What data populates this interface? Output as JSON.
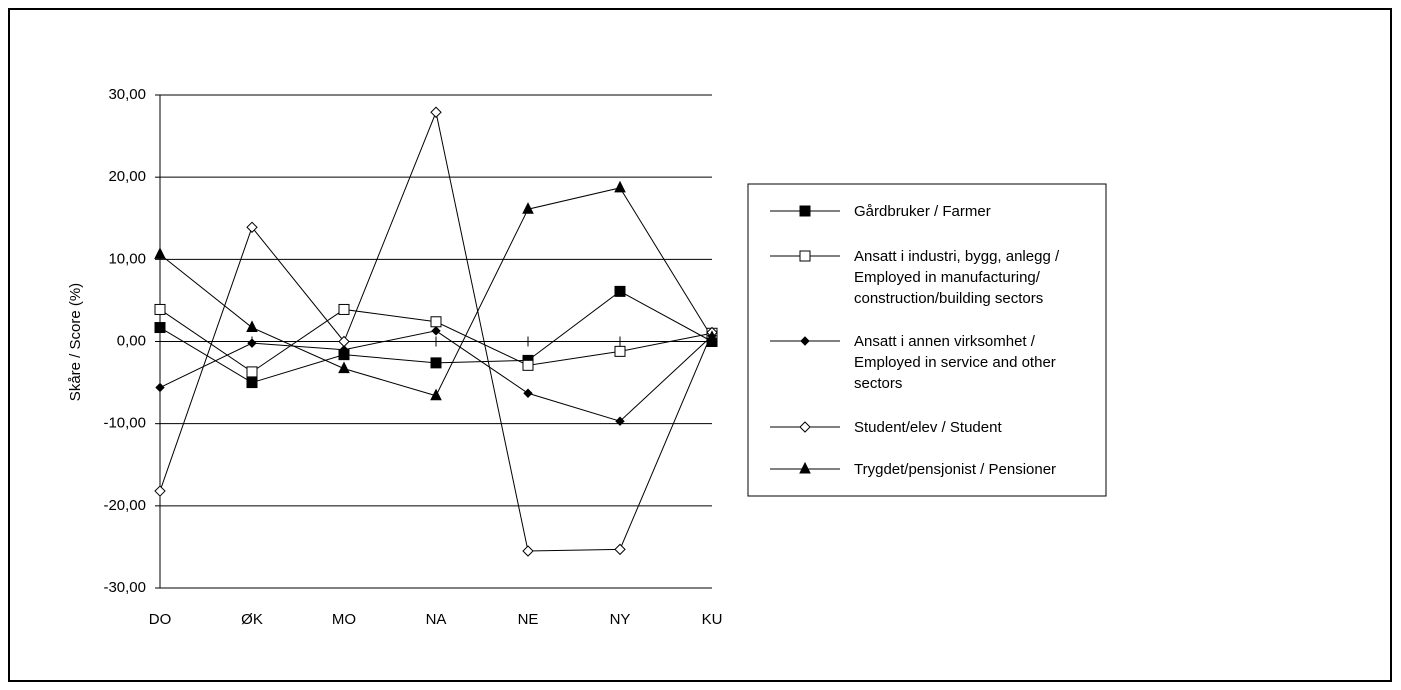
{
  "chart_data": {
    "type": "line",
    "y_label": "Skåre / Score (%)",
    "categories": [
      "DO",
      "ØK",
      "MO",
      "NA",
      "NE",
      "NY",
      "KU"
    ],
    "ylim": [
      -30,
      30
    ],
    "yticks": [
      {
        "value": -30,
        "label": "-30,00"
      },
      {
        "value": -20,
        "label": "-20,00"
      },
      {
        "value": -10,
        "label": "-10,00"
      },
      {
        "value": 0,
        "label": "0,00"
      },
      {
        "value": 10,
        "label": "10,00"
      },
      {
        "value": 20,
        "label": "20,00"
      },
      {
        "value": 30,
        "label": "30,00"
      }
    ],
    "grid": true,
    "legend": "right",
    "series": [
      {
        "name": "Gårdbruker / Farmer",
        "color": "#000000",
        "marker": "square-filled",
        "values": [
          1.7,
          -5.0,
          -1.6,
          -2.6,
          -2.3,
          6.1,
          0.0
        ]
      },
      {
        "name": "Ansatt i industri, bygg, anlegg / Employed in manufacturing/ construction/building sectors",
        "color": "#000000",
        "marker": "square-open",
        "values": [
          3.9,
          -3.7,
          3.9,
          2.4,
          -2.9,
          -1.2,
          1.0
        ]
      },
      {
        "name": "Ansatt i annen virksomhet / Employed in service and other sectors",
        "color": "#000000",
        "marker": "diamond-filled",
        "values": [
          -5.6,
          -0.2,
          -1.0,
          1.3,
          -6.3,
          -9.7,
          0.7
        ]
      },
      {
        "name": "Student/elev / Student",
        "color": "#000000",
        "marker": "diamond-open",
        "values": [
          -18.2,
          13.9,
          0.0,
          27.9,
          -25.5,
          -25.3,
          1.1
        ]
      },
      {
        "name": "Trygdet/pensjonist / Pensioner",
        "color": "#000000",
        "marker": "triangle-filled",
        "values": [
          10.6,
          1.7,
          -3.3,
          -6.6,
          16.1,
          18.7,
          0.5
        ]
      }
    ]
  }
}
